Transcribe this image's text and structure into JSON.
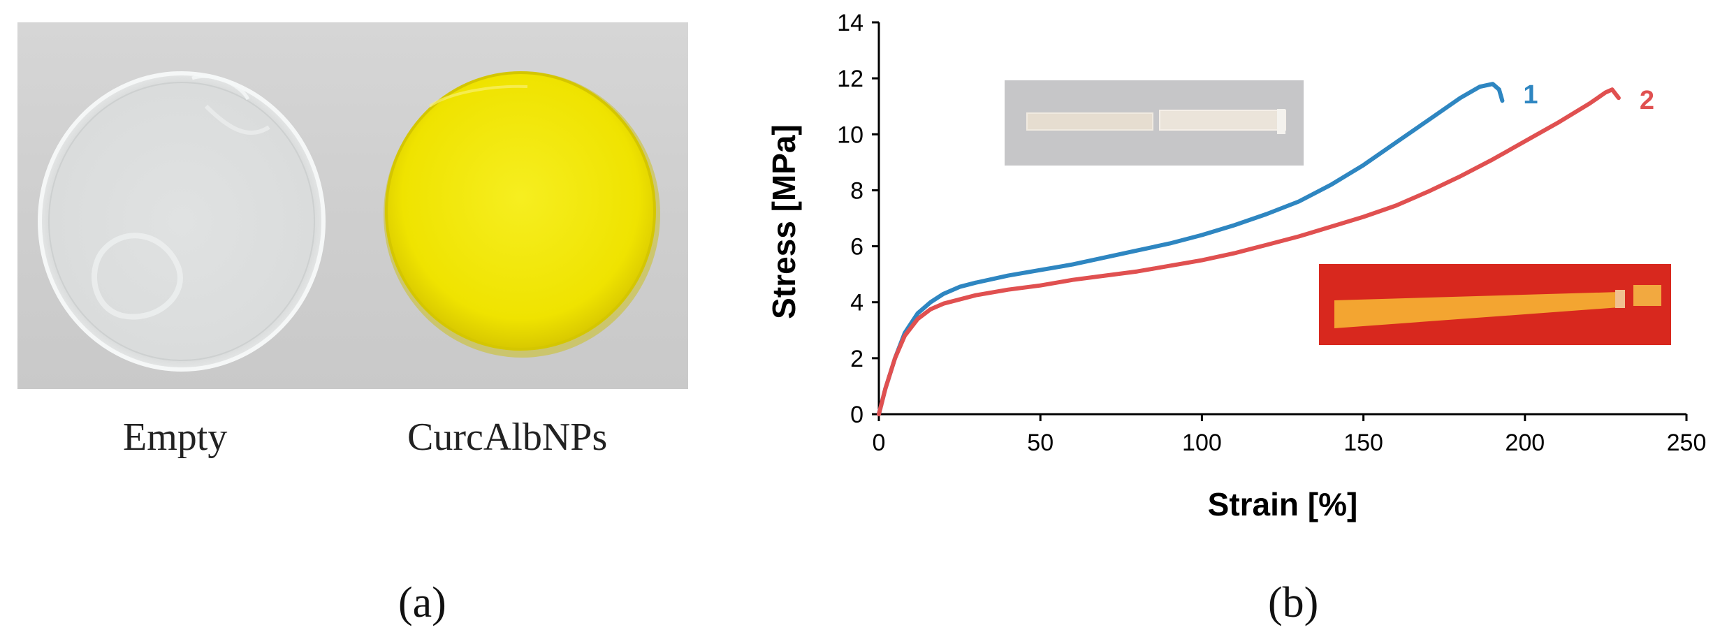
{
  "panel_a": {
    "captions": [
      "Empty",
      "CurcAlbNPs"
    ],
    "label": "(a)",
    "colors": {
      "background": "#d2d2d2",
      "empty_film": "#eef0f0",
      "curc_film": "#f2e800"
    }
  },
  "panel_b": {
    "label": "(b)"
  },
  "chart_data": {
    "type": "line",
    "title": "",
    "xlabel": "Strain [%]",
    "ylabel": "Stress [MPa]",
    "xlim": [
      0,
      250
    ],
    "ylim": [
      0,
      14
    ],
    "xticks": [
      0,
      50,
      100,
      150,
      200,
      250
    ],
    "yticks": [
      0,
      2,
      4,
      6,
      8,
      10,
      12,
      14
    ],
    "grid": false,
    "series": [
      {
        "name": "1",
        "color": "#2e86c1",
        "x": [
          0,
          2,
          5,
          8,
          12,
          16,
          20,
          25,
          30,
          40,
          50,
          60,
          70,
          80,
          90,
          100,
          110,
          120,
          130,
          140,
          150,
          160,
          170,
          180,
          186,
          190,
          192,
          193
        ],
        "y": [
          0,
          0.9,
          2.0,
          2.9,
          3.6,
          4.0,
          4.3,
          4.55,
          4.7,
          4.95,
          5.15,
          5.35,
          5.6,
          5.85,
          6.1,
          6.4,
          6.75,
          7.15,
          7.6,
          8.2,
          8.9,
          9.7,
          10.5,
          11.3,
          11.7,
          11.8,
          11.6,
          11.2
        ]
      },
      {
        "name": "2",
        "color": "#e05050",
        "x": [
          0,
          2,
          5,
          8,
          12,
          16,
          20,
          25,
          30,
          40,
          50,
          60,
          70,
          80,
          90,
          100,
          110,
          120,
          130,
          140,
          150,
          160,
          170,
          180,
          190,
          200,
          210,
          220,
          225,
          227,
          229
        ],
        "y": [
          0,
          0.9,
          2.0,
          2.8,
          3.4,
          3.75,
          3.95,
          4.1,
          4.25,
          4.45,
          4.6,
          4.8,
          4.95,
          5.1,
          5.3,
          5.5,
          5.75,
          6.05,
          6.35,
          6.7,
          7.05,
          7.45,
          7.95,
          8.5,
          9.1,
          9.75,
          10.4,
          11.1,
          11.5,
          11.6,
          11.3
        ]
      }
    ],
    "annotations": [
      "1",
      "2"
    ],
    "insets": [
      {
        "description": "clear strip broken",
        "background": "#c8c8c8",
        "strip_color": "#e4ddd2"
      },
      {
        "description": "orange strip broken",
        "background": "#d8281e",
        "strip_color": "#f0a030"
      }
    ]
  }
}
